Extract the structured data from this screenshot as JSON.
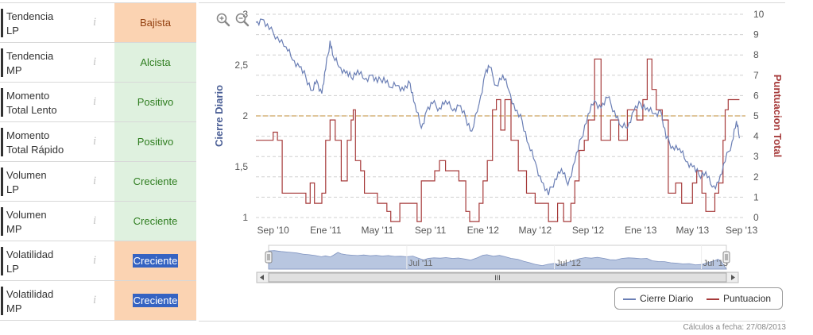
{
  "indicators": [
    {
      "label": "Tendencia\nLP",
      "value": "Bajista",
      "state": "bear",
      "selected": false
    },
    {
      "label": "Tendencia\nMP",
      "value": "Alcista",
      "state": "bull",
      "selected": false
    },
    {
      "label": "Momento\nTotal Lento",
      "value": "Positivo",
      "state": "bull",
      "selected": false
    },
    {
      "label": "Momento\nTotal Rápido",
      "value": "Positivo",
      "state": "bull",
      "selected": false
    },
    {
      "label": "Volumen\nLP",
      "value": "Creciente",
      "state": "bull",
      "selected": false
    },
    {
      "label": "Volumen\nMP",
      "value": "Creciente",
      "state": "bull",
      "selected": false
    },
    {
      "label": "Volatilidad\nLP",
      "value": "Creciente",
      "state": "bear",
      "selected": true
    },
    {
      "label": "Volatilidad\nMP",
      "value": "Creciente",
      "state": "bear",
      "selected": true
    }
  ],
  "info_glyph": "i",
  "footer_text": "Cálculos a fecha: 27/08/2013",
  "colors": {
    "cierre": "#6b7fb5",
    "puntuacion": "#a63a3a",
    "reference_line": "#d6b47a",
    "navigator_fill": "#b8c6e0"
  },
  "chart_data": {
    "type": "line",
    "x_tick_labels": [
      "Sep '10",
      "Ene '11",
      "May '11",
      "Sep '11",
      "Ene '12",
      "May '12",
      "Sep '12",
      "Ene '13",
      "May '13",
      "Sep '13"
    ],
    "x_range": [
      "2010-08",
      "2013-09"
    ],
    "left_axis": {
      "title": "Cierre Diario",
      "ticks": [
        "1",
        "1,5",
        "2",
        "2,5",
        "3"
      ],
      "range": [
        1,
        3
      ]
    },
    "right_axis": {
      "title": "Puntuacion Total",
      "ticks": [
        "0",
        "1",
        "2",
        "3",
        "4",
        "5",
        "6",
        "7",
        "8",
        "9",
        "10"
      ],
      "range": [
        0,
        10
      ]
    },
    "reference_line": {
      "axis": "right",
      "value": 5
    },
    "grid": true,
    "legend_position": "bottom-right",
    "navigator_labels": [
      "Jul '11",
      "Jul '12",
      "Jul '13"
    ],
    "navigator_scroll_glyph": "III",
    "series": [
      {
        "name": "Cierre Diario",
        "axis": "left",
        "points": [
          [
            "2010-08-01",
            2.92
          ],
          [
            "2010-08-15",
            2.95
          ],
          [
            "2010-09-01",
            2.85
          ],
          [
            "2010-09-20",
            2.78
          ],
          [
            "2010-10-10",
            2.68
          ],
          [
            "2010-10-25",
            2.55
          ],
          [
            "2010-11-10",
            2.48
          ],
          [
            "2010-11-25",
            2.38
          ],
          [
            "2010-12-10",
            2.25
          ],
          [
            "2010-12-20",
            2.35
          ],
          [
            "2011-01-01",
            2.22
          ],
          [
            "2011-01-10",
            2.46
          ],
          [
            "2011-01-20",
            2.74
          ],
          [
            "2011-01-28",
            2.58
          ],
          [
            "2011-02-10",
            2.48
          ],
          [
            "2011-02-25",
            2.42
          ],
          [
            "2011-03-10",
            2.38
          ],
          [
            "2011-03-25",
            2.45
          ],
          [
            "2011-04-10",
            2.36
          ],
          [
            "2011-04-25",
            2.4
          ],
          [
            "2011-05-10",
            2.33
          ],
          [
            "2011-05-25",
            2.38
          ],
          [
            "2011-06-10",
            2.28
          ],
          [
            "2011-06-25",
            2.3
          ],
          [
            "2011-07-10",
            2.25
          ],
          [
            "2011-07-25",
            2.32
          ],
          [
            "2011-08-05",
            2.12
          ],
          [
            "2011-08-20",
            1.88
          ],
          [
            "2011-09-01",
            2.05
          ],
          [
            "2011-09-15",
            2.12
          ],
          [
            "2011-10-01",
            2.08
          ],
          [
            "2011-10-15",
            2.15
          ],
          [
            "2011-11-01",
            2.05
          ],
          [
            "2011-11-15",
            2.1
          ],
          [
            "2011-12-01",
            1.98
          ],
          [
            "2011-12-15",
            1.85
          ],
          [
            "2012-01-01",
            2.12
          ],
          [
            "2012-01-15",
            2.42
          ],
          [
            "2012-01-25",
            2.48
          ],
          [
            "2012-02-10",
            2.3
          ],
          [
            "2012-02-25",
            2.4
          ],
          [
            "2012-03-10",
            2.25
          ],
          [
            "2012-03-25",
            2.05
          ],
          [
            "2012-04-10",
            1.95
          ],
          [
            "2012-04-25",
            1.72
          ],
          [
            "2012-05-10",
            1.55
          ],
          [
            "2012-05-25",
            1.35
          ],
          [
            "2012-06-10",
            1.22
          ],
          [
            "2012-06-25",
            1.38
          ],
          [
            "2012-07-10",
            1.48
          ],
          [
            "2012-07-25",
            1.32
          ],
          [
            "2012-08-10",
            1.55
          ],
          [
            "2012-08-25",
            1.78
          ],
          [
            "2012-09-10",
            2.02
          ],
          [
            "2012-09-25",
            2.15
          ],
          [
            "2012-10-10",
            2.08
          ],
          [
            "2012-10-25",
            2.18
          ],
          [
            "2012-11-10",
            2.05
          ],
          [
            "2012-11-25",
            1.9
          ],
          [
            "2012-12-10",
            1.88
          ],
          [
            "2012-12-25",
            2.05
          ],
          [
            "2013-01-10",
            2.12
          ],
          [
            "2013-01-25",
            2.08
          ],
          [
            "2013-02-10",
            2.02
          ],
          [
            "2013-02-25",
            2.05
          ],
          [
            "2013-03-10",
            1.78
          ],
          [
            "2013-03-25",
            1.7
          ],
          [
            "2013-04-10",
            1.68
          ],
          [
            "2013-04-25",
            1.55
          ],
          [
            "2013-05-10",
            1.5
          ],
          [
            "2013-05-25",
            1.42
          ],
          [
            "2013-06-10",
            1.45
          ],
          [
            "2013-06-25",
            1.3
          ],
          [
            "2013-07-10",
            1.35
          ],
          [
            "2013-07-25",
            1.55
          ],
          [
            "2013-08-10",
            1.75
          ],
          [
            "2013-08-20",
            1.95
          ],
          [
            "2013-08-27",
            1.78
          ]
        ]
      },
      {
        "name": "Puntuacion",
        "axis": "right",
        "steps": [
          [
            "2010-08-01",
            3.8
          ],
          [
            "2010-09-10",
            4.2
          ],
          [
            "2010-09-20",
            3.8
          ],
          [
            "2010-10-01",
            1.2
          ],
          [
            "2010-11-25",
            0.7
          ],
          [
            "2010-12-05",
            1.7
          ],
          [
            "2010-12-15",
            0.7
          ],
          [
            "2011-01-01",
            1.2
          ],
          [
            "2011-01-10",
            3.8
          ],
          [
            "2011-01-20",
            4.8
          ],
          [
            "2011-02-01",
            3.8
          ],
          [
            "2011-02-15",
            1.8
          ],
          [
            "2011-03-01",
            3.8
          ],
          [
            "2011-03-10",
            4.8
          ],
          [
            "2011-03-15",
            5.3
          ],
          [
            "2011-03-20",
            2.8
          ],
          [
            "2011-04-01",
            2.3
          ],
          [
            "2011-04-10",
            1.2
          ],
          [
            "2011-05-10",
            0.7
          ],
          [
            "2011-06-01",
            0.3
          ],
          [
            "2011-06-10",
            -0.2
          ],
          [
            "2011-07-01",
            0.7
          ],
          [
            "2011-08-10",
            -0.2
          ],
          [
            "2011-08-20",
            1.8
          ],
          [
            "2011-09-20",
            2.3
          ],
          [
            "2011-10-01",
            2.8
          ],
          [
            "2011-10-15",
            2.3
          ],
          [
            "2011-11-01",
            2.3
          ],
          [
            "2011-11-15",
            1.8
          ],
          [
            "2011-12-01",
            0.3
          ],
          [
            "2011-12-10",
            -0.2
          ],
          [
            "2012-01-01",
            0.7
          ],
          [
            "2012-01-10",
            1.8
          ],
          [
            "2012-01-20",
            2.8
          ],
          [
            "2012-02-01",
            5.3
          ],
          [
            "2012-02-10",
            5.8
          ],
          [
            "2012-02-20",
            4.3
          ],
          [
            "2012-03-01",
            5.8
          ],
          [
            "2012-03-15",
            3.8
          ],
          [
            "2012-04-01",
            2.3
          ],
          [
            "2012-04-20",
            1.2
          ],
          [
            "2012-05-10",
            0.7
          ],
          [
            "2012-06-10",
            -0.2
          ],
          [
            "2012-07-01",
            0.7
          ],
          [
            "2012-07-15",
            -0.2
          ],
          [
            "2012-08-01",
            0.7
          ],
          [
            "2012-08-10",
            1.8
          ],
          [
            "2012-08-20",
            3.3
          ],
          [
            "2012-09-01",
            3.8
          ],
          [
            "2012-09-10",
            4.8
          ],
          [
            "2012-09-25",
            7.8
          ],
          [
            "2012-10-10",
            3.8
          ],
          [
            "2012-11-01",
            4.8
          ],
          [
            "2012-11-20",
            3.8
          ],
          [
            "2012-12-10",
            5.3
          ],
          [
            "2013-01-01",
            4.8
          ],
          [
            "2013-01-15",
            5.8
          ],
          [
            "2013-01-25",
            7.8
          ],
          [
            "2013-02-05",
            6.3
          ],
          [
            "2013-02-15",
            5.3
          ],
          [
            "2013-03-01",
            4.8
          ],
          [
            "2013-03-15",
            1.2
          ],
          [
            "2013-04-01",
            1.7
          ],
          [
            "2013-04-15",
            0.7
          ],
          [
            "2013-05-10",
            1.7
          ],
          [
            "2013-05-20",
            2.3
          ],
          [
            "2013-06-01",
            1.2
          ],
          [
            "2013-06-10",
            0.3
          ],
          [
            "2013-07-01",
            1.2
          ],
          [
            "2013-07-10",
            1.7
          ],
          [
            "2013-07-20",
            3.8
          ],
          [
            "2013-07-25",
            5.3
          ],
          [
            "2013-08-01",
            5.8
          ],
          [
            "2013-08-27",
            5.8
          ]
        ]
      }
    ]
  }
}
